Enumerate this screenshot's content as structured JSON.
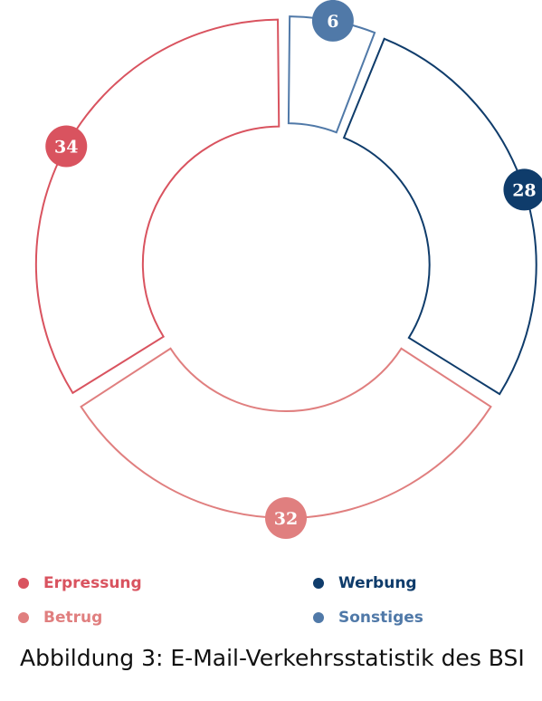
{
  "chart_data": {
    "type": "pie",
    "variant": "exploded-donut",
    "categories": [
      "Sonstiges",
      "Werbung",
      "Betrug",
      "Erpressung"
    ],
    "values": [
      6,
      28,
      32,
      34
    ],
    "colors": {
      "Sonstiges": "#5079a8",
      "Werbung": "#0f3c6b",
      "Betrug": "#e07f7f",
      "Erpressung": "#d9535f"
    },
    "data_labels": [
      "6",
      "28",
      "32",
      "34"
    ],
    "legend": {
      "placement": "bottom",
      "entries": [
        {
          "label": "Erpressung",
          "color": "#d9535f"
        },
        {
          "label": "Werbung",
          "color": "#0f3c6b"
        },
        {
          "label": "Betrug",
          "color": "#e07f7f"
        },
        {
          "label": "Sonstiges",
          "color": "#5079a8"
        }
      ]
    }
  },
  "caption": "Abbildung 3: E-Mail-Verkehrsstatistik des BSI"
}
